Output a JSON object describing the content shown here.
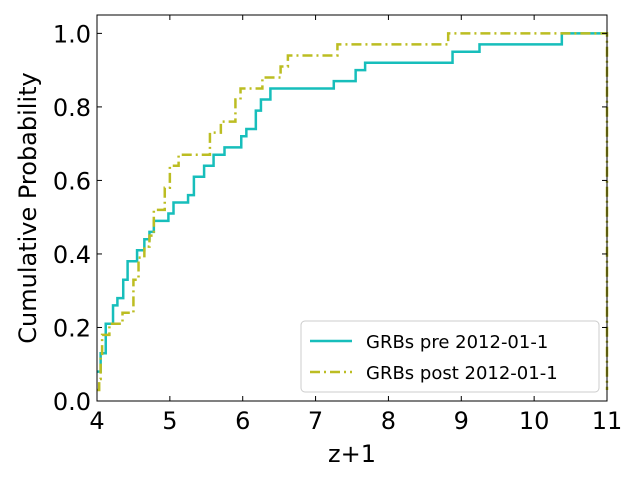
{
  "chart_data": {
    "type": "line",
    "subtype": "step-cdf",
    "title": "",
    "xlabel": "z+1",
    "ylabel": "Cumulative Probability",
    "xlim": [
      4,
      11
    ],
    "ylim": [
      0,
      1.05
    ],
    "x_ticks": [
      4,
      5,
      6,
      7,
      8,
      9,
      10,
      11
    ],
    "x_tick_labels": [
      "4",
      "5",
      "6",
      "7",
      "8",
      "9",
      "10",
      "11"
    ],
    "y_ticks": [
      0.0,
      0.2,
      0.4,
      0.6,
      0.8,
      1.0
    ],
    "y_tick_labels": [
      "0.0",
      "0.2",
      "0.4",
      "0.6",
      "0.8",
      "1.0"
    ],
    "grid": false,
    "legend_position": "bottom-right",
    "series": [
      {
        "name": "GRBs pre 2012-01-1",
        "color": "#17bebb",
        "linestyle": "solid",
        "points": [
          [
            4.0,
            0.08
          ],
          [
            4.05,
            0.08
          ],
          [
            4.05,
            0.13
          ],
          [
            4.12,
            0.13
          ],
          [
            4.12,
            0.21
          ],
          [
            4.22,
            0.21
          ],
          [
            4.22,
            0.26
          ],
          [
            4.28,
            0.26
          ],
          [
            4.28,
            0.28
          ],
          [
            4.36,
            0.28
          ],
          [
            4.36,
            0.33
          ],
          [
            4.42,
            0.33
          ],
          [
            4.42,
            0.38
          ],
          [
            4.55,
            0.38
          ],
          [
            4.55,
            0.41
          ],
          [
            4.65,
            0.41
          ],
          [
            4.65,
            0.44
          ],
          [
            4.72,
            0.44
          ],
          [
            4.72,
            0.46
          ],
          [
            4.78,
            0.46
          ],
          [
            4.78,
            0.49
          ],
          [
            4.98,
            0.49
          ],
          [
            4.98,
            0.51
          ],
          [
            5.05,
            0.51
          ],
          [
            5.05,
            0.54
          ],
          [
            5.25,
            0.54
          ],
          [
            5.25,
            0.56
          ],
          [
            5.33,
            0.56
          ],
          [
            5.33,
            0.61
          ],
          [
            5.47,
            0.61
          ],
          [
            5.47,
            0.64
          ],
          [
            5.6,
            0.64
          ],
          [
            5.6,
            0.67
          ],
          [
            5.75,
            0.67
          ],
          [
            5.75,
            0.69
          ],
          [
            5.98,
            0.69
          ],
          [
            5.98,
            0.72
          ],
          [
            6.05,
            0.72
          ],
          [
            6.05,
            0.74
          ],
          [
            6.18,
            0.74
          ],
          [
            6.18,
            0.79
          ],
          [
            6.25,
            0.79
          ],
          [
            6.25,
            0.82
          ],
          [
            6.38,
            0.82
          ],
          [
            6.38,
            0.85
          ],
          [
            7.25,
            0.85
          ],
          [
            7.25,
            0.87
          ],
          [
            7.55,
            0.87
          ],
          [
            7.55,
            0.9
          ],
          [
            7.68,
            0.9
          ],
          [
            7.68,
            0.92
          ],
          [
            8.88,
            0.92
          ],
          [
            8.88,
            0.95
          ],
          [
            9.25,
            0.95
          ],
          [
            9.25,
            0.97
          ],
          [
            10.38,
            0.97
          ],
          [
            10.38,
            1.0
          ],
          [
            11.0,
            1.0
          ]
        ]
      },
      {
        "name": "GRBs post 2012-01-1",
        "color": "#bcbd22",
        "linestyle": "dashdot",
        "points": [
          [
            4.0,
            0.03
          ],
          [
            4.03,
            0.03
          ],
          [
            4.03,
            0.06
          ],
          [
            4.05,
            0.06
          ],
          [
            4.05,
            0.12
          ],
          [
            4.07,
            0.12
          ],
          [
            4.07,
            0.18
          ],
          [
            4.17,
            0.18
          ],
          [
            4.17,
            0.21
          ],
          [
            4.35,
            0.21
          ],
          [
            4.35,
            0.24
          ],
          [
            4.5,
            0.24
          ],
          [
            4.5,
            0.33
          ],
          [
            4.57,
            0.33
          ],
          [
            4.57,
            0.39
          ],
          [
            4.65,
            0.39
          ],
          [
            4.65,
            0.42
          ],
          [
            4.72,
            0.42
          ],
          [
            4.72,
            0.45
          ],
          [
            4.78,
            0.45
          ],
          [
            4.78,
            0.52
          ],
          [
            4.93,
            0.52
          ],
          [
            4.93,
            0.58
          ],
          [
            5.0,
            0.58
          ],
          [
            5.0,
            0.64
          ],
          [
            5.12,
            0.64
          ],
          [
            5.12,
            0.67
          ],
          [
            5.55,
            0.67
          ],
          [
            5.55,
            0.73
          ],
          [
            5.7,
            0.73
          ],
          [
            5.7,
            0.76
          ],
          [
            5.9,
            0.76
          ],
          [
            5.9,
            0.82
          ],
          [
            5.97,
            0.82
          ],
          [
            5.97,
            0.85
          ],
          [
            6.27,
            0.85
          ],
          [
            6.27,
            0.88
          ],
          [
            6.52,
            0.88
          ],
          [
            6.52,
            0.91
          ],
          [
            6.62,
            0.91
          ],
          [
            6.62,
            0.94
          ],
          [
            7.3,
            0.94
          ],
          [
            7.3,
            0.97
          ],
          [
            8.82,
            0.97
          ],
          [
            8.82,
            1.0
          ],
          [
            11.0,
            1.0
          ],
          [
            11.0,
            0.03
          ]
        ]
      }
    ]
  }
}
